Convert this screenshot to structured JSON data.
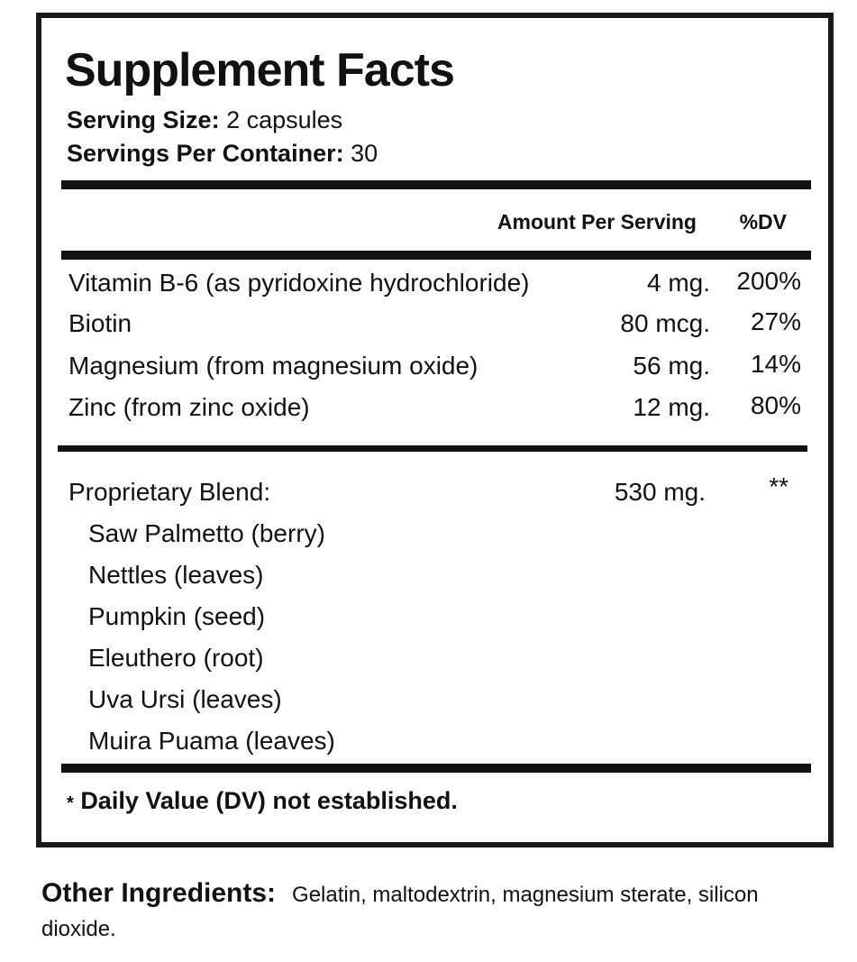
{
  "header": {
    "title": "Supplement Facts",
    "serving_size": {
      "label": "Serving Size:",
      "value": "2 capsules"
    },
    "servings_per_container": {
      "label": "Servings Per Container:",
      "value": "30"
    }
  },
  "table": {
    "columns": [
      "Amount Per Serving",
      "%DV"
    ],
    "rows": [
      [
        "Vitamin B-6 (as pyridoxine hydrochloride)",
        "4 mg.",
        "200%"
      ],
      [
        "Biotin",
        "80 mcg.",
        "27%"
      ],
      [
        "Magnesium (from magnesium oxide)",
        "56 mg.",
        "14%"
      ],
      [
        "Zinc (from zinc oxide)",
        "12 mg.",
        "80%"
      ]
    ]
  },
  "blend": {
    "name": "Proprietary Blend:",
    "amount": "530 mg.",
    "dv": "**",
    "ingredients": [
      "Saw Palmetto (berry)",
      "Nettles (leaves)",
      "Pumpkin (seed)",
      "Eleuthero (root)",
      "Uva Ursi (leaves)",
      "Muira Puama (leaves)"
    ]
  },
  "footnote": {
    "mark": "*",
    "text": "Daily Value (DV) not established."
  },
  "other_ingredients": {
    "label": "Other Ingredients:",
    "text": "Gelatin, maltodextrin, magnesium sterate, silicon dioxide."
  }
}
